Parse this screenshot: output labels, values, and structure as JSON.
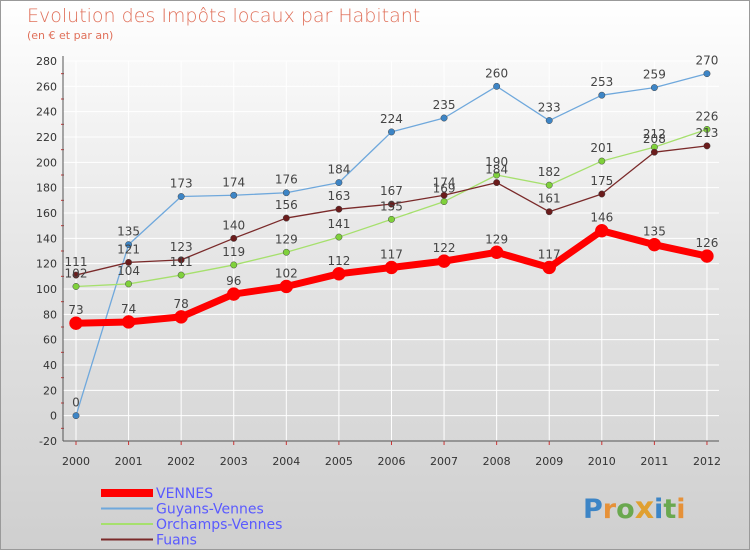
{
  "chart_data": {
    "type": "line",
    "title": "Evolution des Impôts locaux par Habitant",
    "subtitle": "(en € et par an)",
    "xlabel": "",
    "ylabel": "",
    "ylim": [
      -20,
      280
    ],
    "yticks": [
      -20,
      0,
      20,
      40,
      60,
      80,
      100,
      120,
      140,
      160,
      180,
      200,
      220,
      240,
      260,
      280
    ],
    "categories": [
      "2000",
      "2001",
      "2002",
      "2003",
      "2004",
      "2005",
      "2006",
      "2007",
      "2008",
      "2009",
      "2010",
      "2011",
      "2012"
    ],
    "series": [
      {
        "name": "VENNES",
        "color": "#ff0000",
        "marker": "#ff0000",
        "width": 7,
        "values": [
          73,
          74,
          78,
          96,
          102,
          112,
          117,
          122,
          129,
          117,
          146,
          135,
          126
        ]
      },
      {
        "name": "Guyans-Vennes",
        "color": "#6fa8dc",
        "marker": "#3d85c6",
        "width": 1.3,
        "values": [
          0,
          135,
          173,
          174,
          176,
          184,
          224,
          235,
          260,
          233,
          253,
          259,
          270
        ]
      },
      {
        "name": "Orchamps-Vennes",
        "color": "#a6e06d",
        "marker": "#7fd13b",
        "width": 1.3,
        "values": [
          102,
          104,
          111,
          119,
          129,
          141,
          155,
          169,
          190,
          182,
          201,
          212,
          226
        ]
      },
      {
        "name": "Fuans",
        "color": "#7a2a2a",
        "marker": "#6b1c1c",
        "width": 1.3,
        "values": [
          111,
          121,
          123,
          140,
          156,
          163,
          167,
          174,
          184,
          161,
          175,
          208,
          213
        ]
      }
    ],
    "legend_position": "bottom-left"
  },
  "logo": {
    "text": "Proxiti"
  }
}
